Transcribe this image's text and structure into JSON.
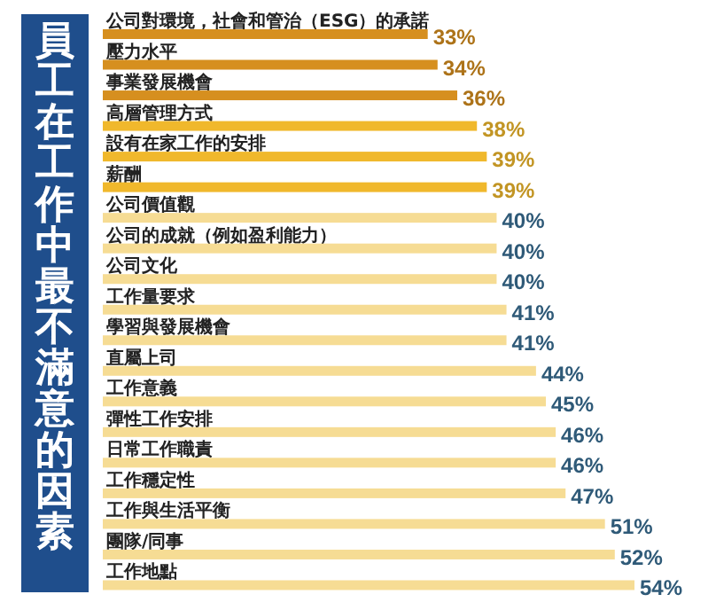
{
  "chart_data": {
    "type": "bar",
    "orientation": "horizontal",
    "title": "員工在工作中最不滿意的因素",
    "categories": [
      "公司對環境，社會和管治（ESG）的承諾",
      "壓力水平",
      "事業發展機會",
      "高層管理方式",
      "設有在家工作的安排",
      "薪酬",
      "公司價值觀",
      "公司的成就（例如盈利能力）",
      "公司文化",
      "工作量要求",
      "學習與發展機會",
      "直屬上司",
      "工作意義",
      "彈性工作安排",
      "日常工作職責",
      "工作穩定性",
      "工作與生活平衡",
      "團隊/同事",
      "工作地點"
    ],
    "values": [
      33,
      34,
      36,
      38,
      39,
      39,
      40,
      40,
      40,
      41,
      41,
      44,
      45,
      46,
      46,
      47,
      51,
      52,
      54
    ],
    "value_labels": [
      "33%",
      "34%",
      "36%",
      "38%",
      "39%",
      "39%",
      "40%",
      "40%",
      "40%",
      "41%",
      "41%",
      "44%",
      "45%",
      "46%",
      "46%",
      "47%",
      "51%",
      "52%",
      "54%"
    ],
    "colors": [
      "#d68f1f",
      "#d68f1f",
      "#d68f1f",
      "#f0b82c",
      "#f0b82c",
      "#f0b82c",
      "#f6dc94",
      "#f6dc94",
      "#f6dc94",
      "#f6dc94",
      "#f6dc94",
      "#f6dc94",
      "#f6dc94",
      "#f6dc94",
      "#f6dc94",
      "#f6dc94",
      "#f6dc94",
      "#f6dc94",
      "#f6dc94"
    ]
  }
}
